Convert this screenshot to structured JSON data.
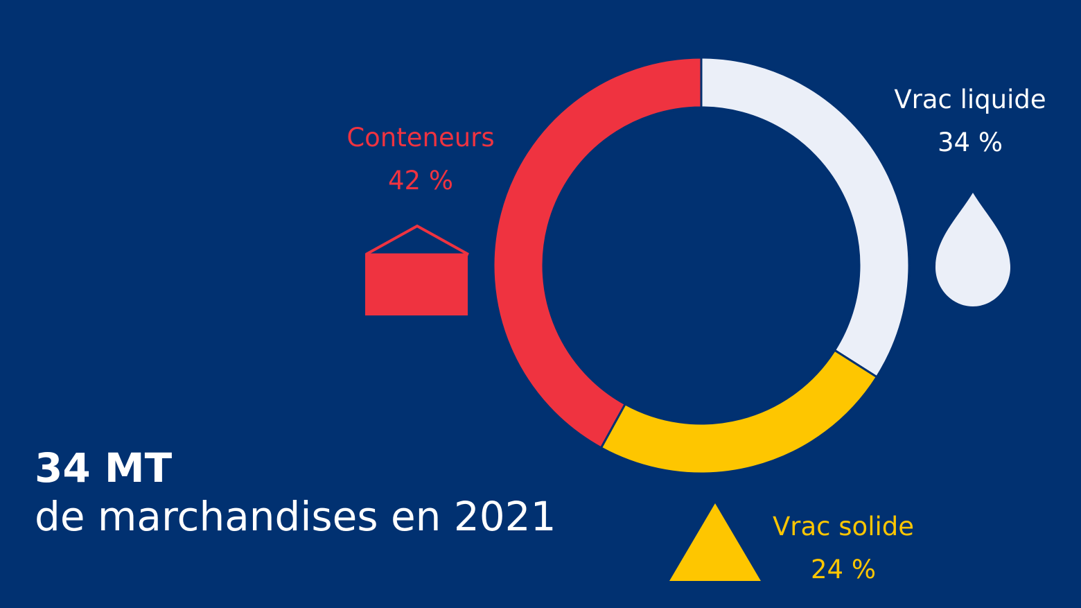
{
  "chart_data": {
    "type": "pie",
    "variant": "donut",
    "slices": [
      {
        "name": "Conteneurs",
        "value": 42,
        "label": "42 %",
        "color": "#ef3340",
        "icon": "container-icon"
      },
      {
        "name": "Vrac liquide",
        "value": 34,
        "label": "34 %",
        "color": "#ebeff8",
        "icon": "droplet-icon"
      },
      {
        "name": "Vrac solide",
        "value": 24,
        "label": "24 %",
        "color": "#fec600",
        "icon": "triangle-icon"
      }
    ],
    "order": "clockwise from top, Vrac liquide first"
  },
  "headline": {
    "value": "34 MT",
    "caption": "de marchandises en 2021"
  },
  "colors": {
    "background": "#013171",
    "text": "#ffffff"
  }
}
